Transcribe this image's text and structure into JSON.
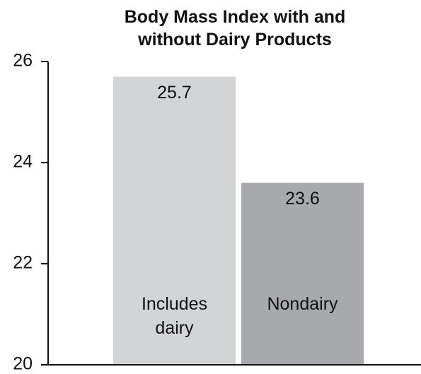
{
  "chart_data": {
    "type": "bar",
    "title": "Body Mass Index with and without Dairy Products",
    "categories": [
      "Includes dairy",
      "Nondairy"
    ],
    "values": [
      25.7,
      23.6
    ],
    "colors": [
      "#d3d4d6",
      "#a8a9ac"
    ],
    "ylim": [
      20,
      26
    ],
    "yticks": [
      20,
      22,
      24,
      26
    ],
    "grid": false
  }
}
